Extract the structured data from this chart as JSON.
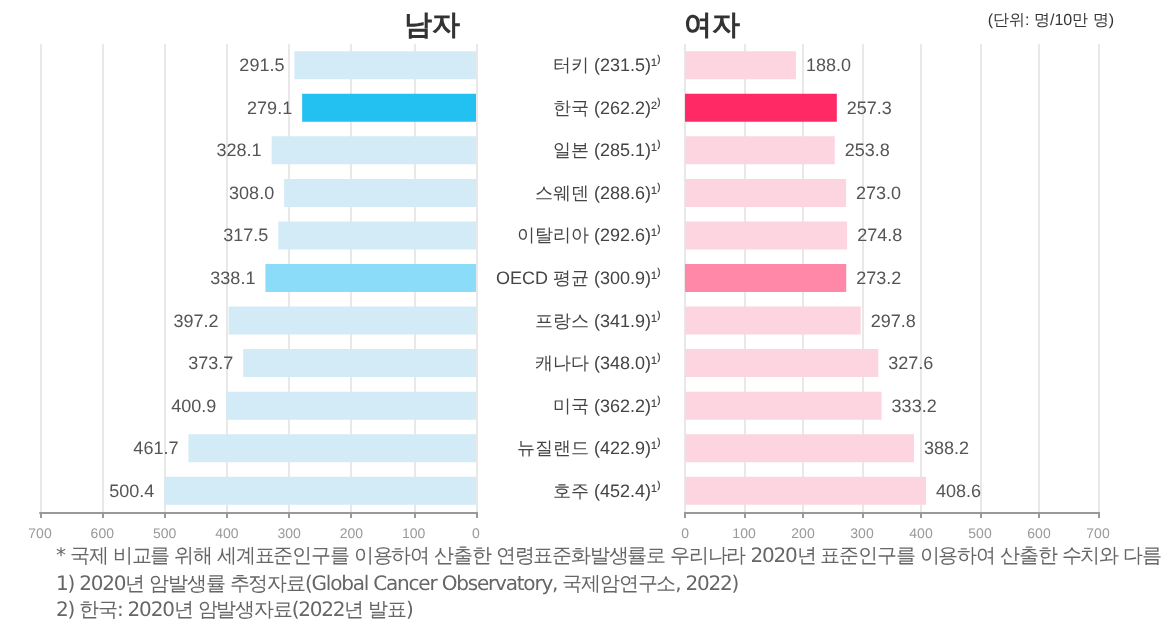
{
  "chart_data": [
    {
      "type": "bar",
      "orientation": "horizontal",
      "title": "남자",
      "categories": [
        null,
        null,
        null,
        null,
        null,
        null,
        null,
        null,
        null,
        null,
        null
      ],
      "values": [
        291.5,
        279.1,
        328.1,
        308.0,
        317.5,
        338.1,
        397.2,
        373.7,
        400.9,
        461.7,
        500.4
      ],
      "value_labels": [
        "291.5",
        "279.1",
        "328.1",
        "308.0",
        "317.5",
        "338.1",
        "397.2",
        "373.7",
        "400.9",
        "461.7",
        "500.4"
      ],
      "colors": [
        "#d2ebf6",
        "#22c1f1",
        "#d2ebf6",
        "#d2ebf6",
        "#d2ebf6",
        "#8adcf8",
        "#d2ebf6",
        "#d2ebf6",
        "#d2ebf6",
        "#d2ebf6",
        "#d2ebf6"
      ],
      "xlim": [
        700,
        0
      ],
      "xticks": [
        0,
        100,
        200,
        300,
        400,
        500,
        600,
        700
      ],
      "grid": "x",
      "annotations": [
        "* 국제 비교를 위해 세계표준인구를 이용하여 산출한 연령표준화발생률로 우리나라 2020년 표준인구를 이용하여 산출한 수치와 다름",
        "1) 2020년 암발생률 추정자료(Global Cancer Observatory, 국제암연구소, 2022)",
        "2) 한국: 2020년 암발생자료(2022년 발표)"
      ]
    },
    {
      "type": "bar",
      "orientation": "horizontal",
      "title": "여자",
      "categories": [
        "터키 (231.5)¹⁾",
        "한국 (262.2)²⁾",
        "일본 (285.1)¹⁾",
        "스웨덴 (288.6)¹⁾",
        "이탈리아 (292.6)¹⁾",
        "OECD 평균 (300.9)¹⁾",
        "프랑스 (341.9)¹⁾",
        "캐나다 (348.0)¹⁾",
        "미국 (362.2)¹⁾",
        "뉴질랜드 (422.9)¹⁾",
        "호주 (452.4)¹⁾"
      ],
      "values": [
        188.0,
        257.3,
        253.8,
        273.0,
        274.8,
        273.2,
        297.8,
        327.6,
        333.2,
        388.2,
        408.6
      ],
      "value_labels": [
        "188.0",
        "257.3",
        "253.8",
        "273.0",
        "274.8",
        "273.2",
        "297.8",
        "327.6",
        "333.2",
        "388.2",
        "408.6"
      ],
      "colors": [
        "#fcd5e1",
        "#ff2a65",
        "#fcd5e1",
        "#fcd5e1",
        "#fcd5e1",
        "#ff87a8",
        "#fcd5e1",
        "#fcd5e1",
        "#fcd5e1",
        "#fcd5e1",
        "#fcd5e1"
      ],
      "xlim": [
        0,
        700
      ],
      "xticks": [
        0,
        100,
        200,
        300,
        400,
        500,
        600,
        700
      ],
      "grid": "x",
      "annotations": [
        "(단위: 명/10만 명)"
      ]
    }
  ]
}
